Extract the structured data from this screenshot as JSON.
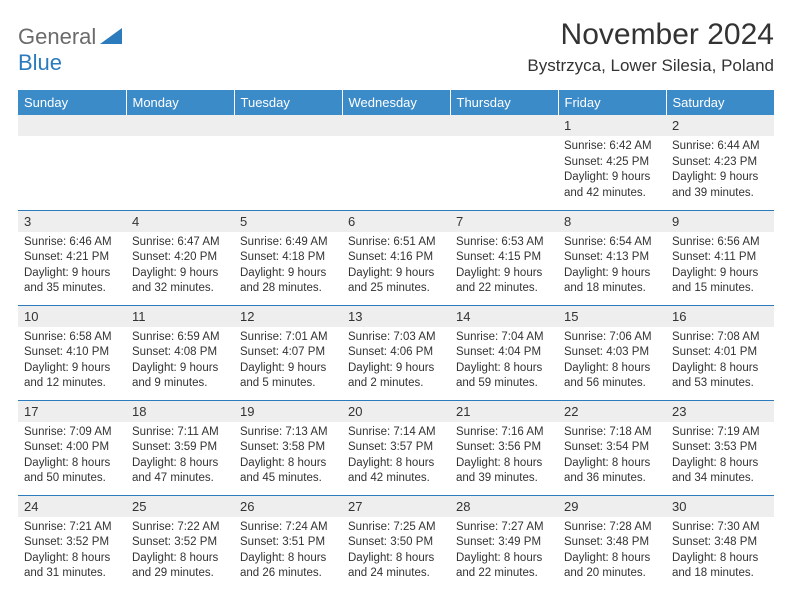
{
  "logo": {
    "text1": "General",
    "text2": "Blue"
  },
  "title": "November 2024",
  "location": "Bystrzyca, Lower Silesia, Poland",
  "colors": {
    "header_bg": "#3b8bc9",
    "header_text": "#ffffff",
    "daynum_bg": "#eeeeee",
    "row_border": "#2b7bbd",
    "logo_blue": "#2b7bbd",
    "logo_gray": "#6b6b6b",
    "text": "#333333",
    "page_bg": "#ffffff"
  },
  "weekdays": [
    "Sunday",
    "Monday",
    "Tuesday",
    "Wednesday",
    "Thursday",
    "Friday",
    "Saturday"
  ],
  "weeks": [
    [
      null,
      null,
      null,
      null,
      null,
      {
        "n": "1",
        "sunrise": "6:42 AM",
        "sunset": "4:25 PM",
        "day_h": "9",
        "day_m": "42"
      },
      {
        "n": "2",
        "sunrise": "6:44 AM",
        "sunset": "4:23 PM",
        "day_h": "9",
        "day_m": "39"
      }
    ],
    [
      {
        "n": "3",
        "sunrise": "6:46 AM",
        "sunset": "4:21 PM",
        "day_h": "9",
        "day_m": "35"
      },
      {
        "n": "4",
        "sunrise": "6:47 AM",
        "sunset": "4:20 PM",
        "day_h": "9",
        "day_m": "32"
      },
      {
        "n": "5",
        "sunrise": "6:49 AM",
        "sunset": "4:18 PM",
        "day_h": "9",
        "day_m": "28"
      },
      {
        "n": "6",
        "sunrise": "6:51 AM",
        "sunset": "4:16 PM",
        "day_h": "9",
        "day_m": "25"
      },
      {
        "n": "7",
        "sunrise": "6:53 AM",
        "sunset": "4:15 PM",
        "day_h": "9",
        "day_m": "22"
      },
      {
        "n": "8",
        "sunrise": "6:54 AM",
        "sunset": "4:13 PM",
        "day_h": "9",
        "day_m": "18"
      },
      {
        "n": "9",
        "sunrise": "6:56 AM",
        "sunset": "4:11 PM",
        "day_h": "9",
        "day_m": "15"
      }
    ],
    [
      {
        "n": "10",
        "sunrise": "6:58 AM",
        "sunset": "4:10 PM",
        "day_h": "9",
        "day_m": "12"
      },
      {
        "n": "11",
        "sunrise": "6:59 AM",
        "sunset": "4:08 PM",
        "day_h": "9",
        "day_m": "9"
      },
      {
        "n": "12",
        "sunrise": "7:01 AM",
        "sunset": "4:07 PM",
        "day_h": "9",
        "day_m": "5"
      },
      {
        "n": "13",
        "sunrise": "7:03 AM",
        "sunset": "4:06 PM",
        "day_h": "9",
        "day_m": "2"
      },
      {
        "n": "14",
        "sunrise": "7:04 AM",
        "sunset": "4:04 PM",
        "day_h": "8",
        "day_m": "59"
      },
      {
        "n": "15",
        "sunrise": "7:06 AM",
        "sunset": "4:03 PM",
        "day_h": "8",
        "day_m": "56"
      },
      {
        "n": "16",
        "sunrise": "7:08 AM",
        "sunset": "4:01 PM",
        "day_h": "8",
        "day_m": "53"
      }
    ],
    [
      {
        "n": "17",
        "sunrise": "7:09 AM",
        "sunset": "4:00 PM",
        "day_h": "8",
        "day_m": "50"
      },
      {
        "n": "18",
        "sunrise": "7:11 AM",
        "sunset": "3:59 PM",
        "day_h": "8",
        "day_m": "47"
      },
      {
        "n": "19",
        "sunrise": "7:13 AM",
        "sunset": "3:58 PM",
        "day_h": "8",
        "day_m": "45"
      },
      {
        "n": "20",
        "sunrise": "7:14 AM",
        "sunset": "3:57 PM",
        "day_h": "8",
        "day_m": "42"
      },
      {
        "n": "21",
        "sunrise": "7:16 AM",
        "sunset": "3:56 PM",
        "day_h": "8",
        "day_m": "39"
      },
      {
        "n": "22",
        "sunrise": "7:18 AM",
        "sunset": "3:54 PM",
        "day_h": "8",
        "day_m": "36"
      },
      {
        "n": "23",
        "sunrise": "7:19 AM",
        "sunset": "3:53 PM",
        "day_h": "8",
        "day_m": "34"
      }
    ],
    [
      {
        "n": "24",
        "sunrise": "7:21 AM",
        "sunset": "3:52 PM",
        "day_h": "8",
        "day_m": "31"
      },
      {
        "n": "25",
        "sunrise": "7:22 AM",
        "sunset": "3:52 PM",
        "day_h": "8",
        "day_m": "29"
      },
      {
        "n": "26",
        "sunrise": "7:24 AM",
        "sunset": "3:51 PM",
        "day_h": "8",
        "day_m": "26"
      },
      {
        "n": "27",
        "sunrise": "7:25 AM",
        "sunset": "3:50 PM",
        "day_h": "8",
        "day_m": "24"
      },
      {
        "n": "28",
        "sunrise": "7:27 AM",
        "sunset": "3:49 PM",
        "day_h": "8",
        "day_m": "22"
      },
      {
        "n": "29",
        "sunrise": "7:28 AM",
        "sunset": "3:48 PM",
        "day_h": "8",
        "day_m": "20"
      },
      {
        "n": "30",
        "sunrise": "7:30 AM",
        "sunset": "3:48 PM",
        "day_h": "8",
        "day_m": "18"
      }
    ]
  ],
  "labels": {
    "sunrise": "Sunrise:",
    "sunset": "Sunset:",
    "daylight": "Daylight:",
    "hours": "hours",
    "and": "and",
    "minutes": "minutes."
  }
}
